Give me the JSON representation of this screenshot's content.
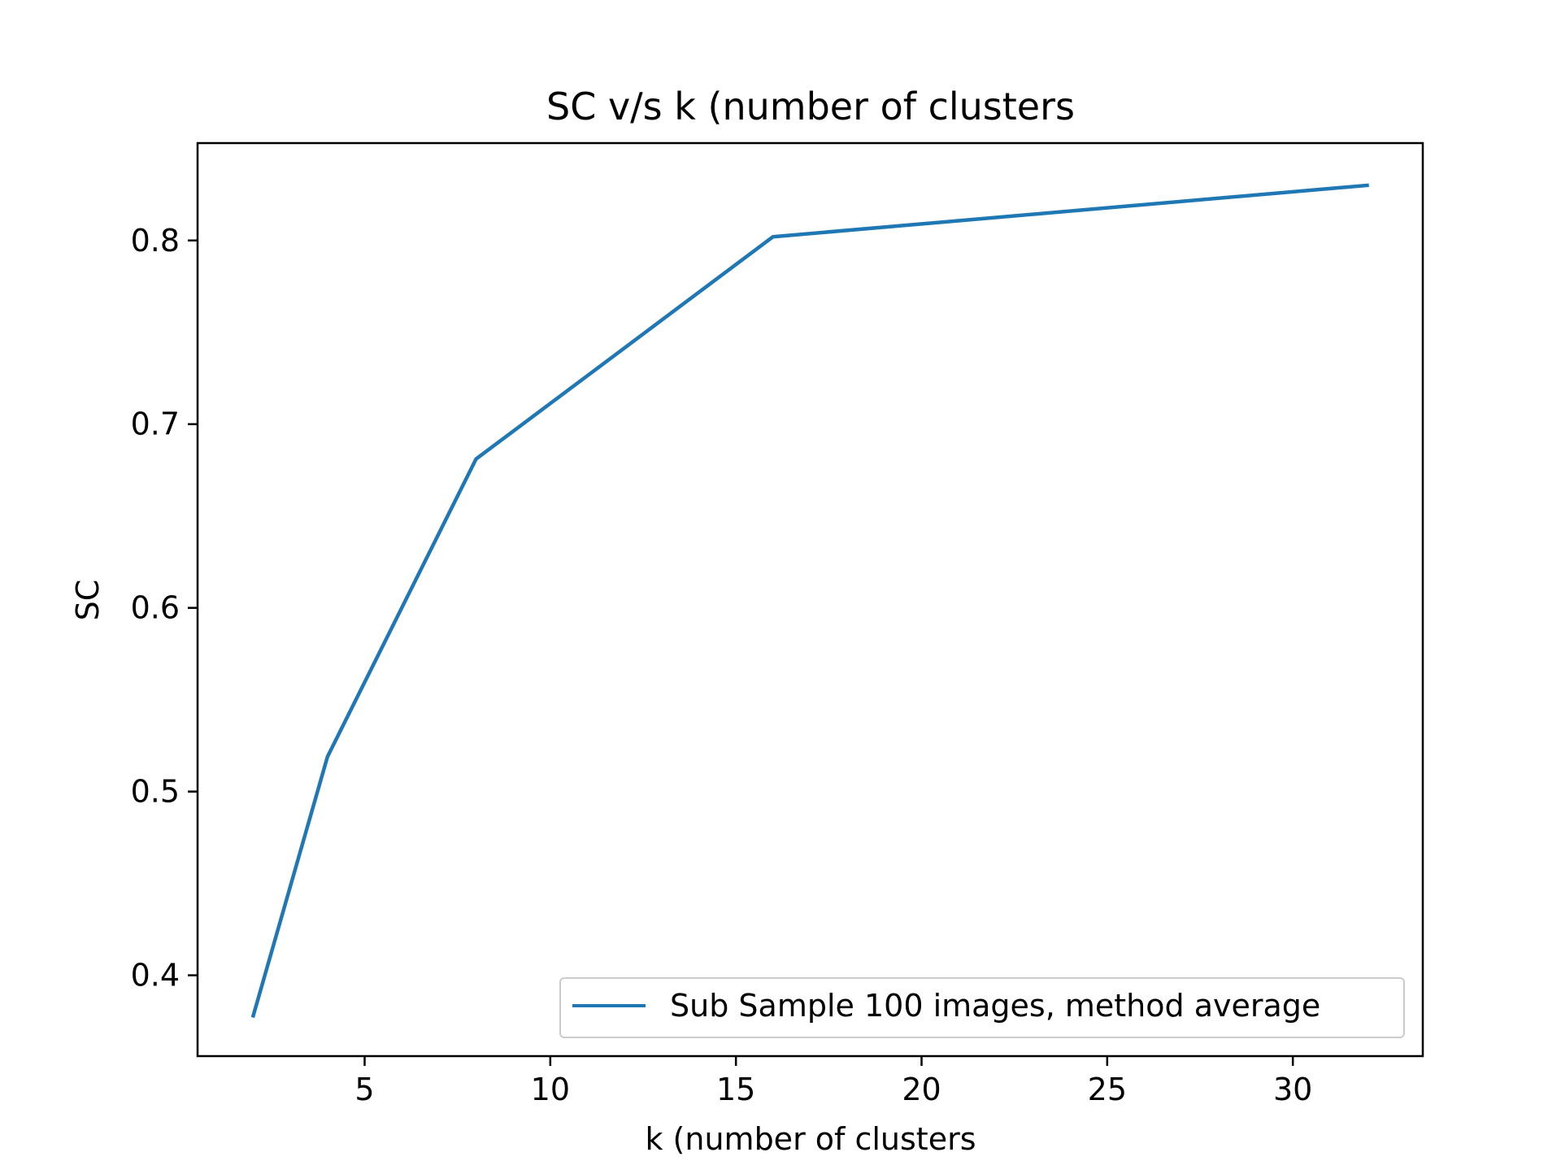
{
  "chart_data": {
    "type": "line",
    "title": "SC v/s k (number of clusters",
    "xlabel": "k (number of clusters",
    "ylabel": "SC",
    "xlim": [
      0.5,
      33.5
    ],
    "ylim": [
      0.356,
      0.853
    ],
    "xticks": [
      5,
      10,
      15,
      20,
      25,
      30
    ],
    "yticks": [
      0.4,
      0.5,
      0.6,
      0.7,
      0.8
    ],
    "xtick_labels": [
      "5",
      "10",
      "15",
      "20",
      "25",
      "30"
    ],
    "ytick_labels": [
      "0.4",
      "0.5",
      "0.6",
      "0.7",
      "0.8"
    ],
    "grid": false,
    "legend_position": "lower right",
    "series": [
      {
        "name": "Sub Sample 100 images, method average",
        "color": "#1f77b4",
        "x": [
          2,
          4,
          8,
          16,
          32
        ],
        "y": [
          0.378,
          0.519,
          0.681,
          0.802,
          0.83
        ]
      }
    ]
  }
}
